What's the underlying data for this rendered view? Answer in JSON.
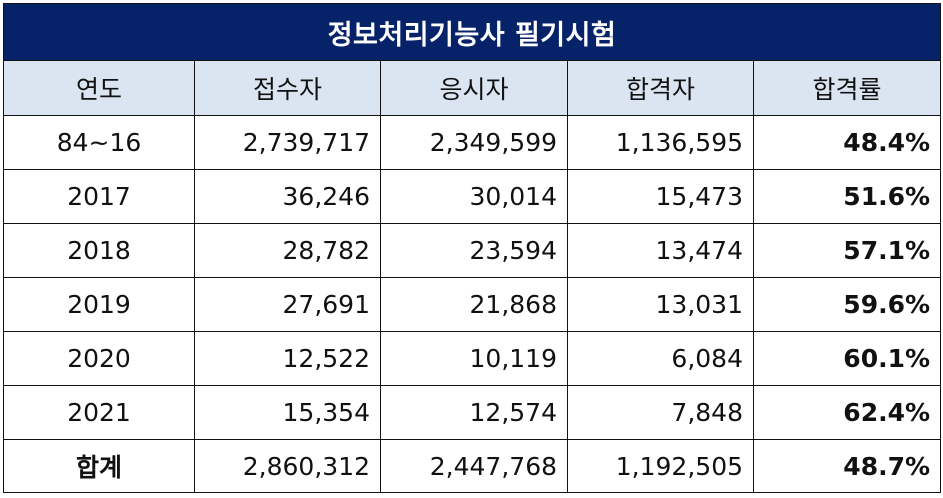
{
  "chart_data": {
    "type": "table",
    "title": "정보처리기능사 필기시험",
    "columns": [
      "연도",
      "접수자",
      "응시자",
      "합격자",
      "합격률"
    ],
    "rows": [
      [
        "84~16",
        "2,739,717",
        "2,349,599",
        "1,136,595",
        "48.4%"
      ],
      [
        "2017",
        "36,246",
        "30,014",
        "15,473",
        "51.6%"
      ],
      [
        "2018",
        "28,782",
        "23,594",
        "13,474",
        "57.1%"
      ],
      [
        "2019",
        "27,691",
        "21,868",
        "13,031",
        "59.6%"
      ],
      [
        "2020",
        "12,522",
        "10,119",
        "6,084",
        "60.1%"
      ],
      [
        "2021",
        "15,354",
        "12,574",
        "7,848",
        "62.4%"
      ]
    ],
    "total": [
      "합계",
      "2,860,312",
      "2,447,768",
      "1,192,505",
      "48.7%"
    ]
  },
  "colors": {
    "title_bg": "#06236a",
    "header_bg": "#dbe5f2",
    "border": "#111111"
  }
}
